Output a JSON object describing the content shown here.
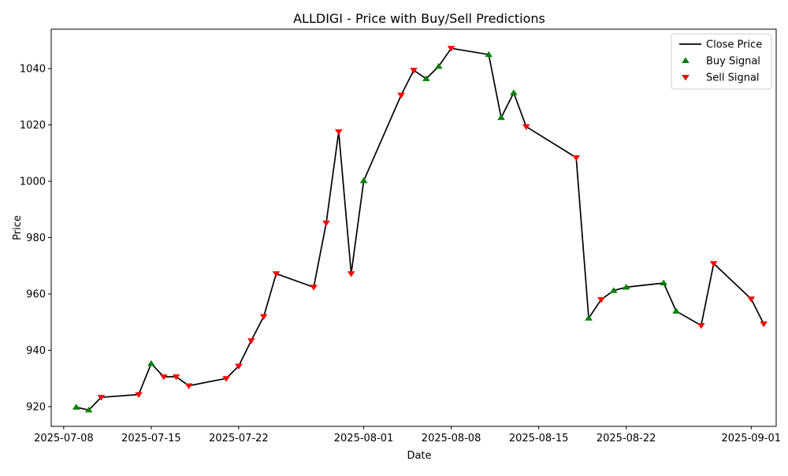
{
  "chart_data": {
    "type": "line",
    "title": "ALLDIGI - Price with Buy/Sell Predictions",
    "xlabel": "Date",
    "ylabel": "Price",
    "ylim": [
      913,
      1054
    ],
    "xlim": [
      "2025-07-07",
      "2025-09-03"
    ],
    "grid": false,
    "legend_position": "top-right",
    "x_ticks": [
      "2025-07-08",
      "2025-07-15",
      "2025-07-22",
      "2025-08-01",
      "2025-08-08",
      "2025-08-15",
      "2025-08-22",
      "2025-09-01"
    ],
    "y_ticks": [
      920,
      940,
      960,
      980,
      1000,
      1020,
      1040
    ],
    "series": [
      {
        "name": "Close Price",
        "color": "#000000",
        "points": [
          {
            "x": "2025-07-09",
            "y": 919.8
          },
          {
            "x": "2025-07-10",
            "y": 918.8
          },
          {
            "x": "2025-07-11",
            "y": 923.3
          },
          {
            "x": "2025-07-14",
            "y": 924.3
          },
          {
            "x": "2025-07-15",
            "y": 935.3
          },
          {
            "x": "2025-07-16",
            "y": 930.6
          },
          {
            "x": "2025-07-17",
            "y": 930.6
          },
          {
            "x": "2025-07-18",
            "y": 927.4
          },
          {
            "x": "2025-07-21",
            "y": 930.0
          },
          {
            "x": "2025-07-22",
            "y": 934.4
          },
          {
            "x": "2025-07-23",
            "y": 943.4
          },
          {
            "x": "2025-07-24",
            "y": 952.0
          },
          {
            "x": "2025-07-25",
            "y": 967.2
          },
          {
            "x": "2025-07-28",
            "y": 962.4
          },
          {
            "x": "2025-07-29",
            "y": 985.2
          },
          {
            "x": "2025-07-30",
            "y": 1017.6
          },
          {
            "x": "2025-07-31",
            "y": 967.2
          },
          {
            "x": "2025-08-01",
            "y": 1000.2
          },
          {
            "x": "2025-08-04",
            "y": 1030.6
          },
          {
            "x": "2025-08-05",
            "y": 1039.4
          },
          {
            "x": "2025-08-06",
            "y": 1036.4
          },
          {
            "x": "2025-08-07",
            "y": 1040.8
          },
          {
            "x": "2025-08-08",
            "y": 1047.2
          },
          {
            "x": "2025-08-11",
            "y": 1045.0
          },
          {
            "x": "2025-08-12",
            "y": 1022.6
          },
          {
            "x": "2025-08-13",
            "y": 1031.4
          },
          {
            "x": "2025-08-14",
            "y": 1019.4
          },
          {
            "x": "2025-08-18",
            "y": 1008.4
          },
          {
            "x": "2025-08-19",
            "y": 951.4
          },
          {
            "x": "2025-08-20",
            "y": 958.0
          },
          {
            "x": "2025-08-21",
            "y": 961.2
          },
          {
            "x": "2025-08-22",
            "y": 962.4
          },
          {
            "x": "2025-08-25",
            "y": 963.9
          },
          {
            "x": "2025-08-26",
            "y": 953.9
          },
          {
            "x": "2025-08-28",
            "y": 948.8
          },
          {
            "x": "2025-08-29",
            "y": 970.8
          },
          {
            "x": "2025-09-01",
            "y": 958.2
          },
          {
            "x": "2025-09-02",
            "y": 949.4
          }
        ]
      },
      {
        "name": "Buy Signal",
        "color": "#008000",
        "marker": "triangle-up",
        "points": [
          {
            "x": "2025-07-09",
            "y": 919.8
          },
          {
            "x": "2025-07-10",
            "y": 918.8
          },
          {
            "x": "2025-07-15",
            "y": 935.3
          },
          {
            "x": "2025-08-01",
            "y": 1000.2
          },
          {
            "x": "2025-08-06",
            "y": 1036.4
          },
          {
            "x": "2025-08-07",
            "y": 1040.8
          },
          {
            "x": "2025-08-11",
            "y": 1045.0
          },
          {
            "x": "2025-08-12",
            "y": 1022.6
          },
          {
            "x": "2025-08-13",
            "y": 1031.4
          },
          {
            "x": "2025-08-19",
            "y": 951.4
          },
          {
            "x": "2025-08-21",
            "y": 961.2
          },
          {
            "x": "2025-08-22",
            "y": 962.4
          },
          {
            "x": "2025-08-25",
            "y": 963.9
          },
          {
            "x": "2025-08-26",
            "y": 953.9
          }
        ]
      },
      {
        "name": "Sell Signal",
        "color": "#ff0000",
        "marker": "triangle-down",
        "points": [
          {
            "x": "2025-07-11",
            "y": 923.3
          },
          {
            "x": "2025-07-14",
            "y": 924.3
          },
          {
            "x": "2025-07-16",
            "y": 930.6
          },
          {
            "x": "2025-07-17",
            "y": 930.6
          },
          {
            "x": "2025-07-18",
            "y": 927.4
          },
          {
            "x": "2025-07-21",
            "y": 930.0
          },
          {
            "x": "2025-07-22",
            "y": 934.4
          },
          {
            "x": "2025-07-23",
            "y": 943.4
          },
          {
            "x": "2025-07-24",
            "y": 952.0
          },
          {
            "x": "2025-07-25",
            "y": 967.2
          },
          {
            "x": "2025-07-28",
            "y": 962.4
          },
          {
            "x": "2025-07-29",
            "y": 985.2
          },
          {
            "x": "2025-07-30",
            "y": 1017.6
          },
          {
            "x": "2025-07-31",
            "y": 967.2
          },
          {
            "x": "2025-08-04",
            "y": 1030.6
          },
          {
            "x": "2025-08-05",
            "y": 1039.4
          },
          {
            "x": "2025-08-08",
            "y": 1047.2
          },
          {
            "x": "2025-08-14",
            "y": 1019.4
          },
          {
            "x": "2025-08-18",
            "y": 1008.4
          },
          {
            "x": "2025-08-20",
            "y": 958.0
          },
          {
            "x": "2025-08-28",
            "y": 948.8
          },
          {
            "x": "2025-08-29",
            "y": 970.8
          },
          {
            "x": "2025-09-01",
            "y": 958.2
          },
          {
            "x": "2025-09-02",
            "y": 949.4
          }
        ]
      }
    ]
  }
}
